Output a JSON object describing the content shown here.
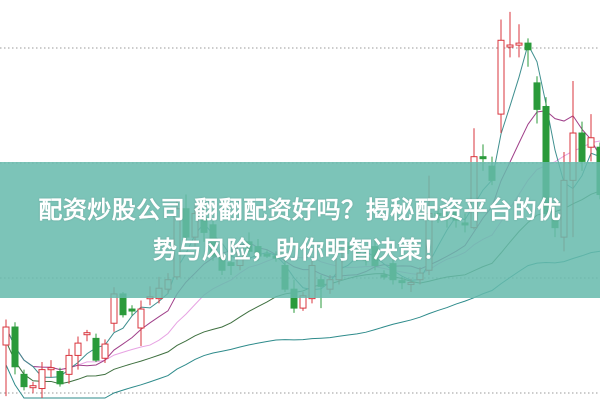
{
  "banner": {
    "line1": "配资炒股公司 翻翻配资好吗？揭秘配资平台的优",
    "line2": "势与风险，助你明智决策！",
    "background": "#66baac"
  },
  "chart_data": {
    "type": "candlestick",
    "title": "",
    "xlabel": "",
    "ylabel": "",
    "grid": "dotted horizontal",
    "colors": {
      "up": "#d9363e",
      "down": "#2a9a3a",
      "ma5": "#3f8f8f",
      "ma10": "#a0408a",
      "ma20": "#e7a3e3",
      "ma30": "#3f7040",
      "ma60": "#2e8b8b"
    },
    "ohlc": [
      [
        56,
        83,
        2,
        75
      ],
      [
        75,
        80,
        25,
        33
      ],
      [
        25,
        30,
        8,
        12
      ],
      [
        12,
        17,
        5,
        13
      ],
      [
        10,
        38,
        0,
        30
      ],
      [
        30,
        40,
        22,
        32
      ],
      [
        28,
        32,
        12,
        15
      ],
      [
        25,
        52,
        15,
        45
      ],
      [
        45,
        65,
        30,
        58
      ],
      [
        67,
        72,
        60,
        69
      ],
      [
        63,
        68,
        38,
        40
      ],
      [
        42,
        62,
        37,
        57
      ],
      [
        79,
        117,
        70,
        110
      ],
      [
        110,
        112,
        85,
        88
      ],
      [
        94,
        98,
        87,
        92
      ],
      [
        74,
        103,
        55,
        94
      ],
      [
        105,
        118,
        98,
        107
      ],
      [
        105,
        128,
        100,
        116
      ],
      [
        115,
        132,
        110,
        125
      ],
      [
        128,
        210,
        125,
        200
      ],
      [
        200,
        215,
        165,
        170
      ],
      [
        170,
        205,
        160,
        195
      ],
      [
        190,
        200,
        165,
        175
      ],
      [
        183,
        190,
        145,
        150
      ],
      [
        150,
        165,
        130,
        135
      ],
      [
        143,
        150,
        130,
        140
      ],
      [
        140,
        165,
        135,
        160
      ],
      [
        165,
        175,
        150,
        155
      ],
      [
        160,
        168,
        145,
        150
      ],
      [
        152,
        156,
        148,
        150
      ],
      [
        150,
        155,
        144,
        148
      ],
      [
        140,
        145,
        112,
        115
      ],
      [
        115,
        125,
        90,
        95
      ],
      [
        95,
        112,
        92,
        108
      ],
      [
        105,
        145,
        100,
        140
      ],
      [
        125,
        130,
        95,
        118
      ],
      [
        115,
        130,
        110,
        125
      ],
      [
        125,
        165,
        120,
        160
      ],
      [
        160,
        165,
        152,
        158
      ],
      [
        155,
        165,
        145,
        153
      ],
      [
        148,
        160,
        140,
        146
      ],
      [
        160,
        168,
        135,
        140
      ],
      [
        130,
        135,
        125,
        128
      ],
      [
        142,
        148,
        120,
        125
      ],
      [
        124,
        128,
        115,
        122
      ],
      [
        120,
        126,
        112,
        122
      ],
      [
        125,
        138,
        120,
        132
      ],
      [
        135,
        235,
        130,
        195
      ],
      [
        195,
        200,
        185,
        193
      ],
      [
        192,
        200,
        180,
        190
      ],
      [
        198,
        205,
        180,
        188
      ],
      [
        185,
        195,
        175,
        183
      ],
      [
        180,
        285,
        178,
        255
      ],
      [
        255,
        268,
        240,
        253
      ],
      [
        245,
        255,
        225,
        230
      ],
      [
        300,
        400,
        280,
        378
      ],
      [
        372,
        408,
        360,
        373
      ],
      [
        373,
        395,
        360,
        375
      ],
      [
        375,
        380,
        350,
        368
      ],
      [
        333,
        340,
        290,
        305
      ],
      [
        308,
        318,
        188,
        195
      ],
      [
        190,
        205,
        170,
        180
      ],
      [
        170,
        260,
        155,
        230
      ],
      [
        230,
        335,
        170,
        280
      ],
      [
        280,
        292,
        240,
        250
      ],
      [
        265,
        300,
        250,
        275
      ],
      [
        265,
        270,
        210,
        215
      ]
    ]
  }
}
